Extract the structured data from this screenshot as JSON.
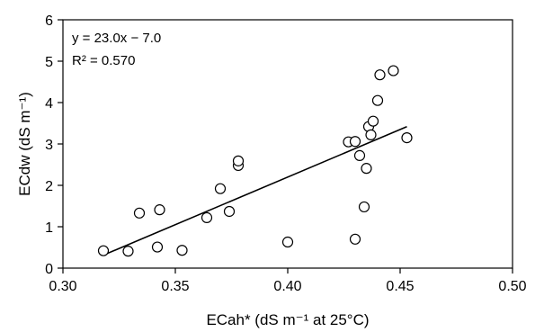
{
  "chart_data": {
    "type": "scatter",
    "xlabel": "ECah* (dS m⁻¹ at 25°C)",
    "ylabel": "ECdw (dS m⁻¹)",
    "xlim": [
      0.3,
      0.5
    ],
    "ylim": [
      0,
      6
    ],
    "x_ticks": [
      "0.30",
      "0.35",
      "0.40",
      "0.45",
      "0.50"
    ],
    "y_ticks": [
      "0",
      "1",
      "2",
      "3",
      "4",
      "5",
      "6"
    ],
    "grid": false,
    "legend": "none",
    "annotations": {
      "equation": "y = 23.0x − 7.0",
      "r2": "R² = 0.570"
    },
    "trendline": {
      "slope": 23.0,
      "intercept": -7.0,
      "x_range": [
        0.318,
        0.453
      ]
    },
    "points": [
      {
        "x": 0.318,
        "y": 0.42
      },
      {
        "x": 0.329,
        "y": 0.41
      },
      {
        "x": 0.334,
        "y": 1.33
      },
      {
        "x": 0.342,
        "y": 0.51
      },
      {
        "x": 0.343,
        "y": 1.41
      },
      {
        "x": 0.353,
        "y": 0.43
      },
      {
        "x": 0.364,
        "y": 1.22
      },
      {
        "x": 0.37,
        "y": 1.92
      },
      {
        "x": 0.374,
        "y": 1.37
      },
      {
        "x": 0.378,
        "y": 2.48
      },
      {
        "x": 0.378,
        "y": 2.59
      },
      {
        "x": 0.4,
        "y": 0.63
      },
      {
        "x": 0.427,
        "y": 3.05
      },
      {
        "x": 0.43,
        "y": 3.06
      },
      {
        "x": 0.43,
        "y": 0.7
      },
      {
        "x": 0.432,
        "y": 2.72
      },
      {
        "x": 0.434,
        "y": 1.48
      },
      {
        "x": 0.435,
        "y": 2.41
      },
      {
        "x": 0.436,
        "y": 3.42
      },
      {
        "x": 0.437,
        "y": 3.22
      },
      {
        "x": 0.438,
        "y": 3.55
      },
      {
        "x": 0.44,
        "y": 4.05
      },
      {
        "x": 0.441,
        "y": 4.67
      },
      {
        "x": 0.447,
        "y": 4.77
      },
      {
        "x": 0.453,
        "y": 3.15
      }
    ]
  }
}
